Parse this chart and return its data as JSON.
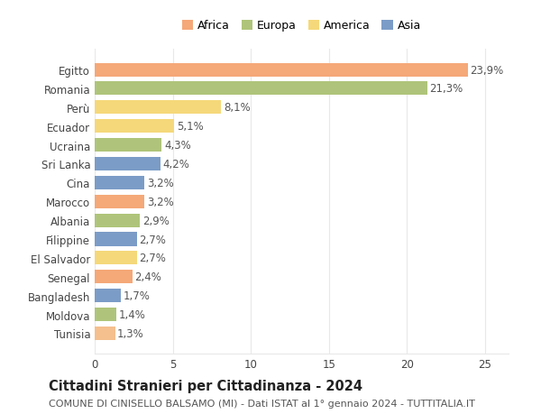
{
  "categories": [
    "Tunisia",
    "Moldova",
    "Bangladesh",
    "Senegal",
    "El Salvador",
    "Filippine",
    "Albania",
    "Marocco",
    "Cina",
    "Sri Lanka",
    "Ucraina",
    "Ecuador",
    "Perù",
    "Romania",
    "Egitto"
  ],
  "values": [
    1.3,
    1.4,
    1.7,
    2.4,
    2.7,
    2.7,
    2.9,
    3.2,
    3.2,
    4.2,
    4.3,
    5.1,
    8.1,
    21.3,
    23.9
  ],
  "colors": [
    "#f5bf8e",
    "#afc47a",
    "#7b9cc7",
    "#f5a878",
    "#f5d87a",
    "#7b9cc7",
    "#afc47a",
    "#f5a878",
    "#7b9cc7",
    "#7b9cc7",
    "#afc47a",
    "#f5d87a",
    "#f5d87a",
    "#afc47a",
    "#f5a878"
  ],
  "legend_labels": [
    "Africa",
    "Europa",
    "America",
    "Asia"
  ],
  "legend_colors": [
    "#f5a878",
    "#afc47a",
    "#f5d87a",
    "#7b9cc7"
  ],
  "title": "Cittadini Stranieri per Cittadinanza - 2024",
  "subtitle": "COMUNE DI CINISELLO BALSAMO (MI) - Dati ISTAT al 1° gennaio 2024 - TUTTITALIA.IT",
  "xlim": [
    0,
    26.5
  ],
  "xticks": [
    0,
    5,
    10,
    15,
    20,
    25
  ],
  "bg_color": "#ffffff",
  "grid_color": "#e8e8e8",
  "bar_height": 0.72,
  "title_fontsize": 10.5,
  "subtitle_fontsize": 8,
  "label_fontsize": 8.5,
  "tick_fontsize": 8.5,
  "legend_fontsize": 9
}
